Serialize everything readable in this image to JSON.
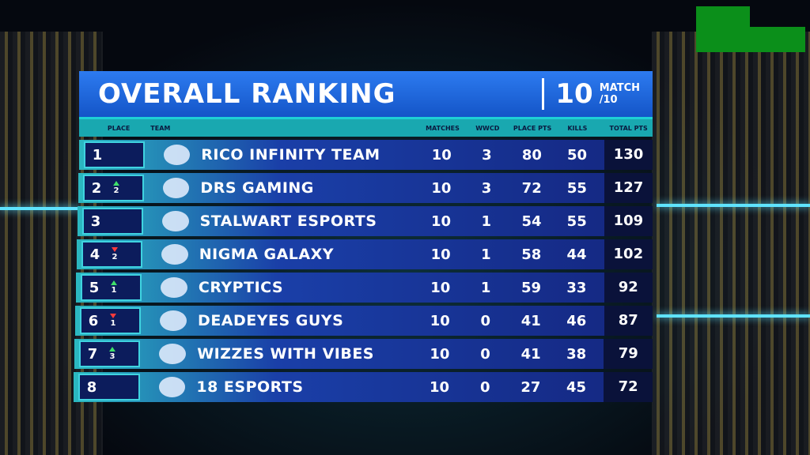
{
  "header": {
    "title": "OVERALL RANKING",
    "match_number": "10",
    "match_label": "MATCH",
    "match_total": "/10"
  },
  "table": {
    "columns": [
      "PLACE",
      "TEAM",
      "MATCHES",
      "WWCD",
      "PLACE PTS",
      "KILLS",
      "TOTAL PTS"
    ],
    "rows": [
      {
        "place": "1",
        "change": null,
        "team": "RICO INFINITY TEAM",
        "stats": [
          "10",
          "3",
          "80",
          "50",
          "130"
        ]
      },
      {
        "place": "2",
        "change": {
          "direction": "up",
          "amount": "2"
        },
        "team": "DRS GAMING",
        "stats": [
          "10",
          "3",
          "72",
          "55",
          "127"
        ]
      },
      {
        "place": "3",
        "change": null,
        "team": "STALWART ESPORTS",
        "stats": [
          "10",
          "1",
          "54",
          "55",
          "109"
        ]
      },
      {
        "place": "4",
        "change": {
          "direction": "down",
          "amount": "2"
        },
        "team": "NIGMA GALAXY",
        "stats": [
          "10",
          "1",
          "58",
          "44",
          "102"
        ]
      },
      {
        "place": "5",
        "change": {
          "direction": "up",
          "amount": "1"
        },
        "team": "CRYPTICS",
        "stats": [
          "10",
          "1",
          "59",
          "33",
          "92"
        ]
      },
      {
        "place": "6",
        "change": {
          "direction": "down",
          "amount": "1"
        },
        "team": "DEADEYES GUYS",
        "stats": [
          "10",
          "0",
          "41",
          "46",
          "87"
        ]
      },
      {
        "place": "7",
        "change": {
          "direction": "up",
          "amount": "3"
        },
        "team": "WIZZES WITH VIBES",
        "stats": [
          "10",
          "0",
          "41",
          "38",
          "79"
        ]
      },
      {
        "place": "8",
        "change": null,
        "team": "18 ESPORTS",
        "stats": [
          "10",
          "0",
          "27",
          "45",
          "72"
        ]
      }
    ]
  }
}
